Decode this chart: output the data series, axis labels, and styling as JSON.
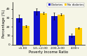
{
  "categories": [
    "<1.00",
    "1.0-<2.00",
    "2.00-4.00",
    "4.00+"
  ],
  "diabetes_values": [
    29.9,
    37.5,
    32.0,
    10.0
  ],
  "no_diabetes_values": [
    20.8,
    35.5,
    34.0,
    18.5
  ],
  "diabetes_errors": [
    4.0,
    3.5,
    3.8,
    2.0
  ],
  "no_diabetes_errors": [
    1.0,
    0.9,
    0.9,
    0.7
  ],
  "bar_color_diabetes": "#1111cc",
  "bar_color_no_diabetes": "#ffcc00",
  "ylabel": "Percentage (%)",
  "xlabel": "Poverty Income Ratio",
  "legend_labels": [
    "Diabetes",
    "No diabetes"
  ],
  "ylim": [
    0,
    48
  ],
  "yticks": [
    0,
    10,
    20,
    30,
    40
  ],
  "background_color": "#f5f5e6",
  "label_fontsize": 3.8,
  "tick_fontsize": 3.2,
  "legend_fontsize": 2.8,
  "bar_width": 0.38,
  "edge_linewidth": 0.3
}
